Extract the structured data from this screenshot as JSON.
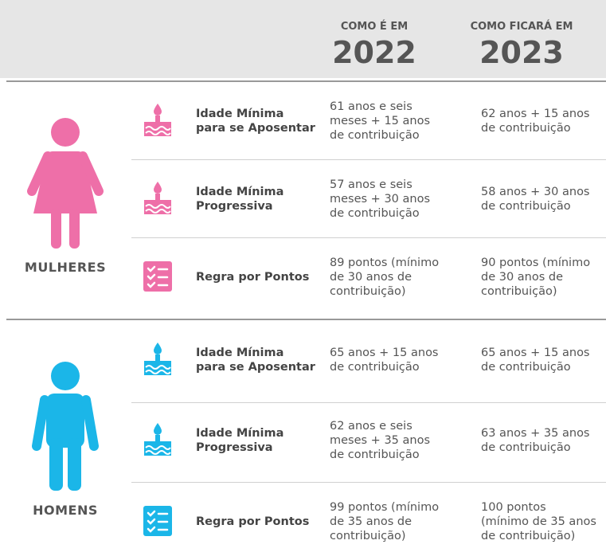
{
  "header": {
    "col2022": {
      "caption": "COMO É EM",
      "year": "2022"
    },
    "col2023": {
      "caption": "COMO FICARÁ EM",
      "year": "2023"
    }
  },
  "groups": [
    {
      "label": "MULHERES",
      "rows": [
        {
          "rule": "Idade Mínima\npara se Aposentar",
          "y2022": "61 anos e seis\nmeses + 15 anos\nde contribuição",
          "y2023": "62 anos + 15 anos\nde contribuição"
        },
        {
          "rule": "Idade Mínima\nProgressiva",
          "y2022": "57 anos e seis\nmeses + 30 anos\nde contribuição",
          "y2023": "58 anos + 30 anos\nde contribuição"
        },
        {
          "rule": "Regra por Pontos",
          "y2022": "89 pontos (mínimo\nde 30 anos de\ncontribuição)",
          "y2023": "90 pontos (mínimo\nde 30 anos de\ncontribuição)"
        }
      ]
    },
    {
      "label": "HOMENS",
      "rows": [
        {
          "rule": "Idade Mínima\npara se Aposentar",
          "y2022": "65 anos + 15 anos\nde contribuição",
          "y2023": "65 anos + 15 anos\nde contribuição"
        },
        {
          "rule": "Idade Mínima\nProgressiva",
          "y2022": "62 anos e seis\nmeses + 35 anos\nde contribuição",
          "y2023": "63 anos + 35 anos\nde contribuição"
        },
        {
          "rule": "Regra por Pontos",
          "y2022": "99 pontos (mínimo\nde 35 anos de\ncontribuição)",
          "y2023": "100 pontos\n(mínimo de 35 anos\nde contribuição)"
        }
      ]
    }
  ]
}
